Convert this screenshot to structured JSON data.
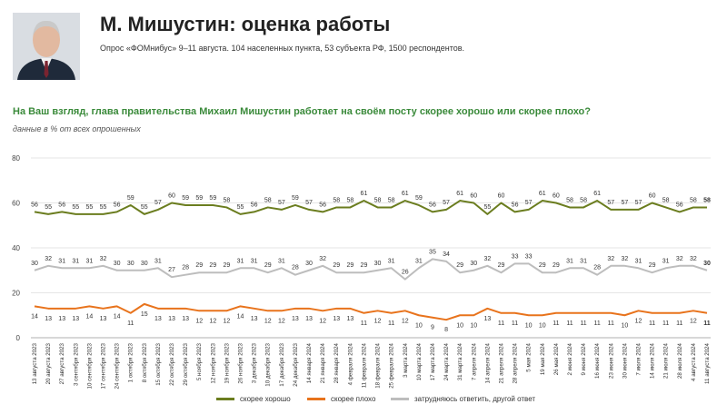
{
  "header": {
    "title": "М. Мишустин: оценка работы",
    "subtitle": "Опрос «ФОМнибус» 9–11 августа. 104 населенных пункта, 53 субъекта РФ, 1500 респондентов."
  },
  "question": "На Ваш взгляд, глава правительства Михаил Мишустин работает на своём посту скорее хорошо или скорее плохо?",
  "note": "данные в % от всех опрошенных",
  "colors": {
    "good": "#6b7d1f",
    "bad": "#e8731c",
    "other": "#bdbdbd"
  },
  "chart_data": {
    "type": "line",
    "ylim": [
      0,
      80
    ],
    "yticks": [
      0,
      20,
      40,
      60,
      80
    ],
    "grid": true,
    "legend_position": "bottom",
    "x": [
      "13 августа 2023",
      "20 августа 2023",
      "27 августа 2023",
      "3 сентября 2023",
      "10 сентября 2023",
      "17 сентября 2023",
      "24 сентября 2023",
      "1 октября 2023",
      "8 октября 2023",
      "15 октября 2023",
      "22 октября 2023",
      "29 октября 2023",
      "5 ноября 2023",
      "12 ноября 2023",
      "19 ноября 2023",
      "26 ноября 2023",
      "3 декабря 2023",
      "10 декабря 2023",
      "17 декабря 2023",
      "24 декабря 2023",
      "14 января 2024",
      "21 января 2024",
      "28 января 2024",
      "4 февраля 2024",
      "11 февраля 2024",
      "18 февраля 2024",
      "25 февраля 2024",
      "3 марта 2024",
      "10 марта 2024",
      "17 марта 2024",
      "24 марта 2024",
      "31 марта 2024",
      "7 апреля 2024",
      "14 апреля 2024",
      "21 апреля 2024",
      "28 апреля 2024",
      "5 мая 2024",
      "19 мая 2024",
      "26 мая 2024",
      "2 июня 2024",
      "9 июня 2024",
      "16 июня 2024",
      "23 июня 2024",
      "30 июня 2024",
      "7 июля 2024",
      "14 июля 2024",
      "21 июля 2024",
      "28 июля 2024",
      "4 августа 2024",
      "11 августа 2024"
    ],
    "series": [
      {
        "name": "скорее хорошо",
        "values": [
          56,
          55,
          56,
          55,
          55,
          55,
          56,
          59,
          55,
          57,
          60,
          59,
          59,
          59,
          58,
          55,
          56,
          58,
          57,
          59,
          57,
          56,
          58,
          58,
          61,
          58,
          58,
          61,
          59,
          56,
          57,
          61,
          60,
          55,
          60,
          56,
          57,
          61,
          60,
          58,
          58,
          61,
          57,
          57,
          57,
          60,
          58,
          56,
          58,
          58
        ]
      },
      {
        "name": "скорее плохо",
        "values": [
          14,
          13,
          13,
          13,
          14,
          13,
          14,
          11,
          15,
          13,
          13,
          13,
          12,
          12,
          12,
          14,
          13,
          12,
          12,
          13,
          13,
          12,
          13,
          13,
          11,
          12,
          11,
          12,
          10,
          9,
          8,
          10,
          10,
          13,
          11,
          11,
          10,
          10,
          11,
          11,
          11,
          11,
          11,
          10,
          12,
          11,
          11,
          11,
          12,
          11
        ]
      },
      {
        "name": "затрудняюсь ответить, другой ответ",
        "values": [
          30,
          32,
          31,
          31,
          31,
          32,
          30,
          30,
          30,
          31,
          27,
          28,
          29,
          29,
          29,
          31,
          31,
          29,
          31,
          28,
          30,
          32,
          29,
          29,
          29,
          30,
          31,
          26,
          31,
          35,
          34,
          29,
          30,
          32,
          29,
          33,
          33,
          29,
          29,
          31,
          31,
          28,
          32,
          32,
          31,
          29,
          31,
          32,
          32,
          30
        ]
      }
    ]
  }
}
